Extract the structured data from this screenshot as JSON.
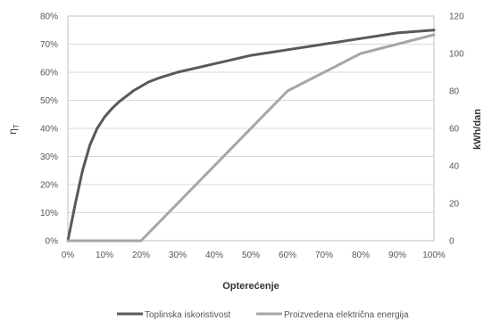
{
  "chart_data": {
    "type": "line",
    "xlabel": "Opterećenje",
    "ylabel_left": "η",
    "ylabel_left_sub": "T",
    "ylabel_right": "kWh/dan",
    "x_ticks": [
      "0%",
      "10%",
      "20%",
      "30%",
      "40%",
      "50%",
      "60%",
      "70%",
      "80%",
      "90%",
      "100%"
    ],
    "y_left_ticks": [
      "0%",
      "10%",
      "20%",
      "30%",
      "40%",
      "50%",
      "60%",
      "70%",
      "80%"
    ],
    "y_right_ticks": [
      "0",
      "20",
      "40",
      "60",
      "80",
      "100",
      "120"
    ],
    "xlim": [
      0,
      100
    ],
    "ylim_left": [
      0,
      80
    ],
    "ylim_right": [
      0,
      120
    ],
    "grid": true,
    "legend_position": "bottom",
    "series": [
      {
        "name": "Toplinska iskoristivost",
        "axis": "left",
        "color": "#595959",
        "x": [
          0,
          2,
          4,
          6,
          8,
          10,
          12,
          14,
          16,
          18,
          20,
          22,
          25,
          30,
          40,
          50,
          60,
          70,
          80,
          90,
          100
        ],
        "y": [
          0,
          13,
          25,
          34,
          40,
          44,
          47,
          49.5,
          51.5,
          53.5,
          55,
          56.5,
          58,
          60,
          63,
          66,
          68,
          70,
          72,
          74,
          75
        ]
      },
      {
        "name": "Proizvedena električna energija",
        "axis": "right",
        "color": "#a6a6a6",
        "x": [
          0,
          20,
          60,
          80,
          100
        ],
        "y": [
          0,
          0,
          80,
          100,
          110
        ]
      }
    ]
  }
}
